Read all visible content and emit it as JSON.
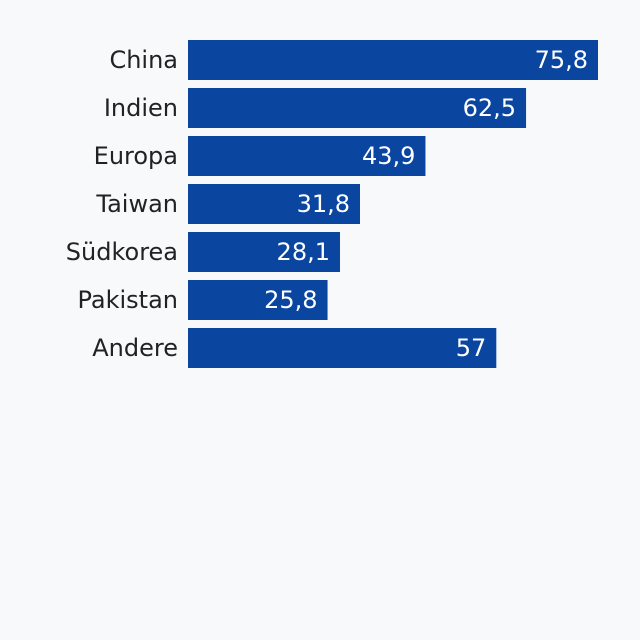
{
  "chart_data": {
    "type": "bar",
    "orientation": "horizontal",
    "categories": [
      "China",
      "Indien",
      "Europa",
      "Taiwan",
      "Südkorea",
      "Pakistan",
      "Andere"
    ],
    "values": [
      75.8,
      62.5,
      43.9,
      31.8,
      28.1,
      25.8,
      57
    ],
    "value_labels": [
      "75,8",
      "62,5",
      "43,9",
      "31,8",
      "28,1",
      "25,8",
      "57"
    ],
    "color": "#0a45a0"
  }
}
